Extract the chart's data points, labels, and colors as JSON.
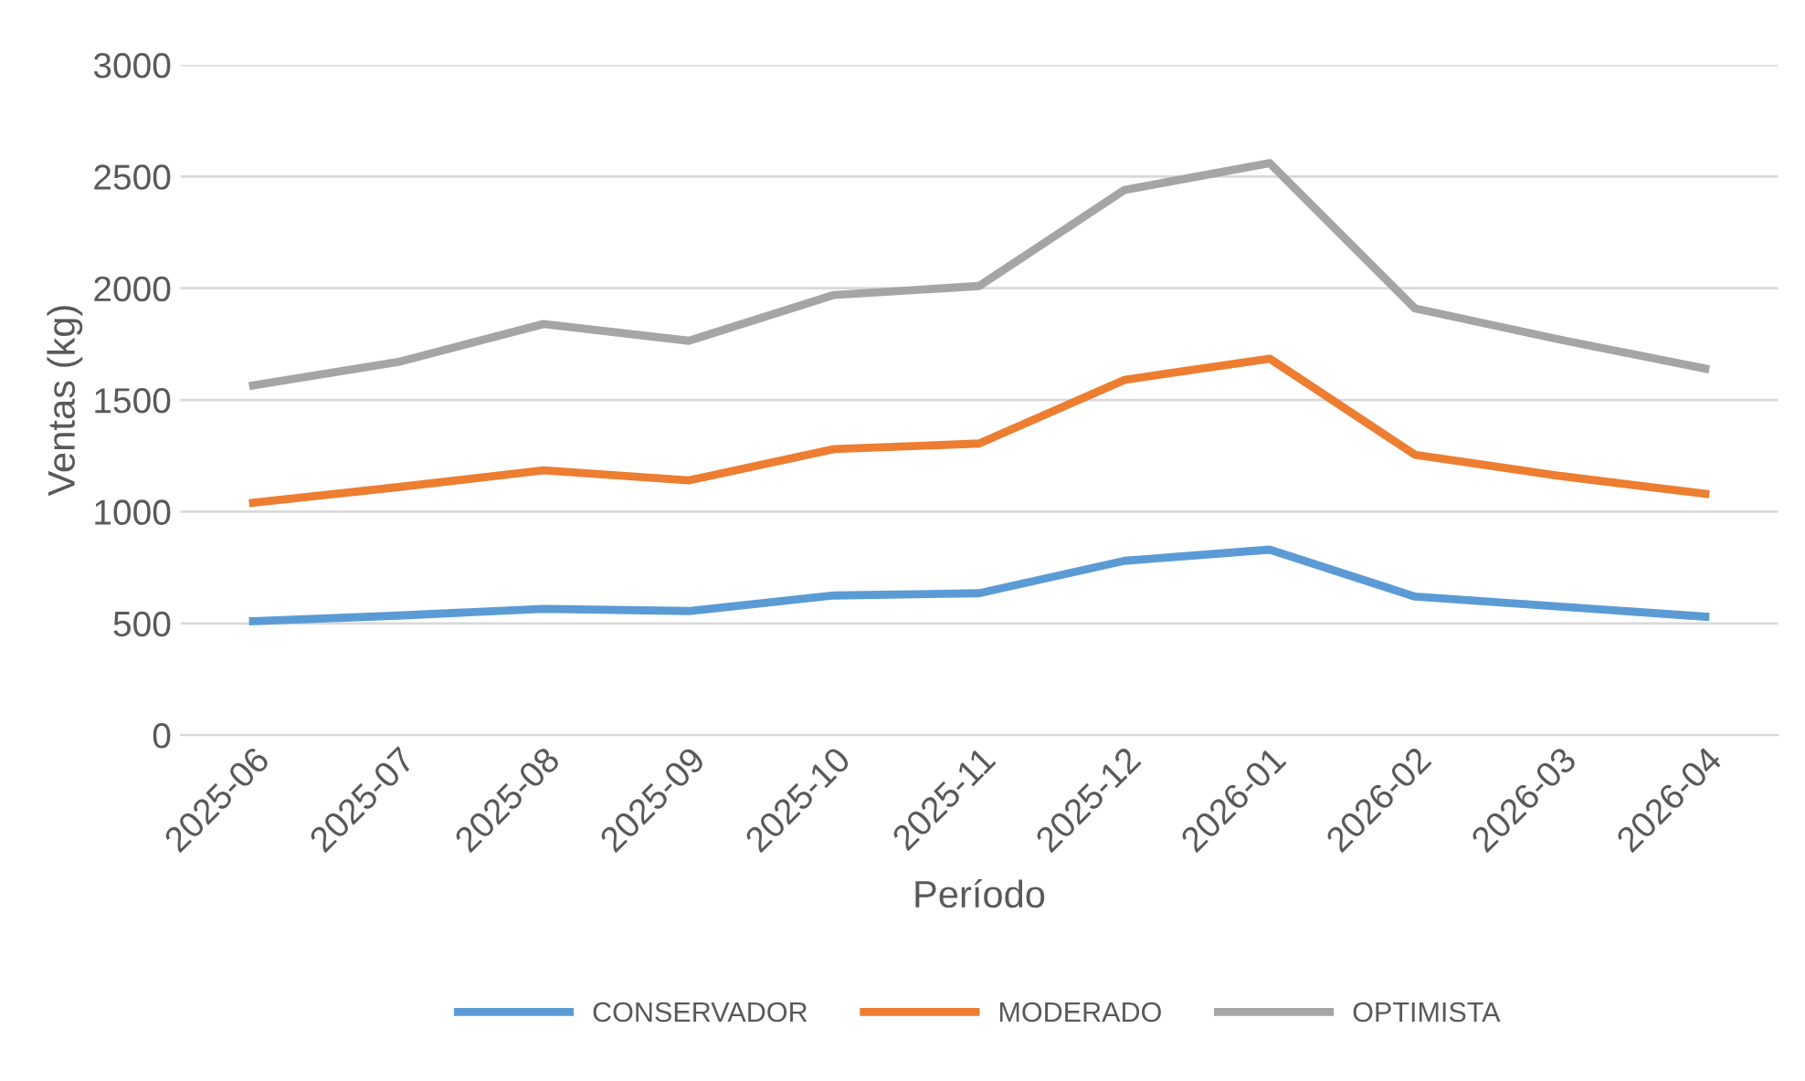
{
  "chart_data": {
    "type": "line",
    "xlabel": "Período",
    "ylabel": "Ventas (kg)",
    "categories": [
      "2025-06",
      "2025-07",
      "2025-08",
      "2025-09",
      "2025-10",
      "2025-11",
      "2025-12",
      "2026-01",
      "2026-02",
      "2026-03",
      "2026-04"
    ],
    "series": [
      {
        "name": "CONSERVADOR",
        "color": "#5b9bd5",
        "values": [
          510,
          535,
          565,
          555,
          625,
          635,
          780,
          830,
          620,
          575,
          530
        ]
      },
      {
        "name": "MODERADO",
        "color": "#ed7d31",
        "values": [
          1040,
          1110,
          1185,
          1140,
          1280,
          1305,
          1590,
          1685,
          1255,
          1160,
          1080
        ]
      },
      {
        "name": "OPTIMISTA",
        "color": "#a5a5a5",
        "values": [
          1565,
          1670,
          1840,
          1765,
          1970,
          2010,
          2440,
          2560,
          1910,
          1770,
          1640
        ]
      }
    ],
    "ylim": [
      0,
      3000
    ],
    "yticks": [
      0,
      500,
      1000,
      1500,
      2000,
      2500,
      3000
    ],
    "grid": "y",
    "legend": "bottom",
    "marker": "none",
    "line_style": "solid"
  }
}
